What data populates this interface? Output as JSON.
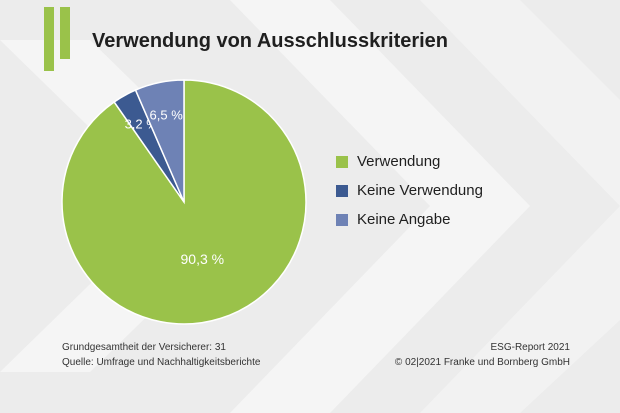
{
  "title": "Verwendung von Ausschlusskriterien",
  "colors": {
    "background": "#ececec",
    "accent": "#9ac24a"
  },
  "chart_data": {
    "type": "pie",
    "title": "Verwendung von Ausschlusskriterien",
    "slices": [
      {
        "label": "Verwendung",
        "value": 90.3,
        "display": "90,3 %",
        "color": "#9ac24a"
      },
      {
        "label": "Keine Verwendung",
        "value": 3.2,
        "display": "3,2 %",
        "color": "#3c5a91"
      },
      {
        "label": "Keine Angabe",
        "value": 6.5,
        "display": "6,5 %",
        "color": "#6e82b5"
      }
    ],
    "legend_position": "right"
  },
  "footer": {
    "left_line1": "Grundgesamtheit der Versicherer: 31",
    "left_line2": "Quelle: Umfrage und Nachhaltigkeitsberichte",
    "right_line1": "ESG-Report 2021",
    "right_line2": "© 02|2021 Franke und Bornberg GmbH"
  }
}
